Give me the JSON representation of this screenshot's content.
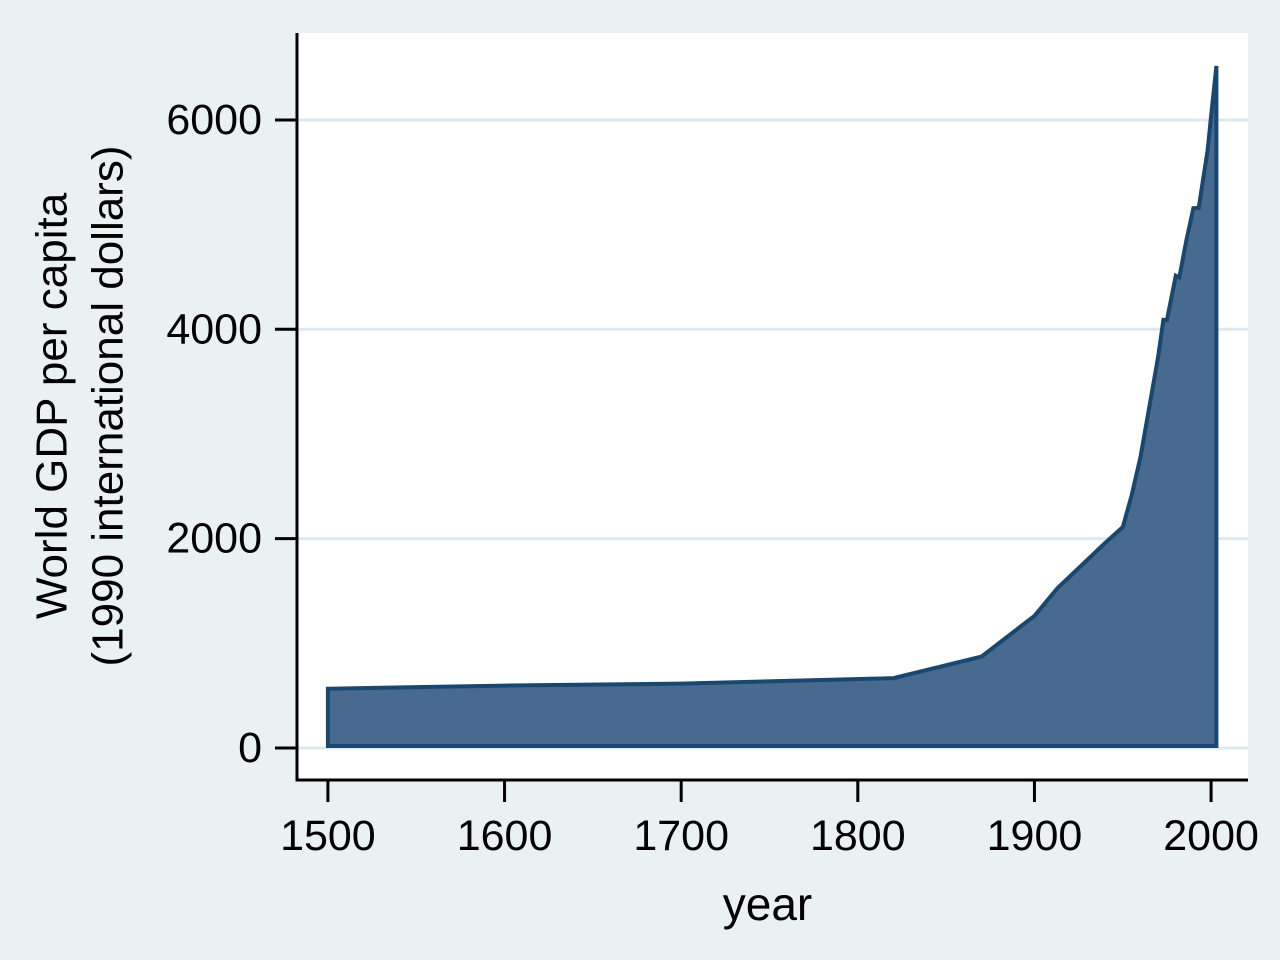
{
  "figure": {
    "background_color": "#eaf1f3",
    "plot_background_color": "#ffffff",
    "gridline_color": "#dde9ee",
    "area_fill_color": "#476a8e",
    "area_line_color": "#1a476f",
    "axis_color": "#000000",
    "text_color": "#000000"
  },
  "chart_data": {
    "type": "area",
    "title": "",
    "xlabel": "year",
    "ylabel": "World GDP per capita (1990 international dollars)",
    "ylabel_lines": [
      "World GDP per capita",
      "(1990 international dollars)"
    ],
    "x_ticks": [
      1500,
      1600,
      1700,
      1800,
      1900,
      2000
    ],
    "y_ticks": [
      0,
      2000,
      4000,
      6000
    ],
    "xlim": [
      1482.5,
      2020.9
    ],
    "ylim": [
      -306,
      6831
    ],
    "grid": true,
    "legend": "none",
    "baseline": 0,
    "series": [
      {
        "name": "World GDP per capita (1990 international dollars)",
        "points": [
          [
            1500,
            566
          ],
          [
            1600,
            596
          ],
          [
            1700,
            615
          ],
          [
            1820,
            667
          ],
          [
            1870,
            873
          ],
          [
            1900,
            1262
          ],
          [
            1913,
            1526
          ],
          [
            1940,
            1958
          ],
          [
            1950,
            2111
          ],
          [
            1955,
            2412
          ],
          [
            1960,
            2777
          ],
          [
            1965,
            3258
          ],
          [
            1970,
            3736
          ],
          [
            1973,
            4091
          ],
          [
            1975,
            4088
          ],
          [
            1980,
            4512
          ],
          [
            1982,
            4494
          ],
          [
            1986,
            4852
          ],
          [
            1990,
            5157
          ],
          [
            1993,
            5160
          ],
          [
            1996,
            5490
          ],
          [
            1998,
            5709
          ],
          [
            2000,
            6038
          ],
          [
            2003,
            6516
          ]
        ]
      }
    ]
  }
}
